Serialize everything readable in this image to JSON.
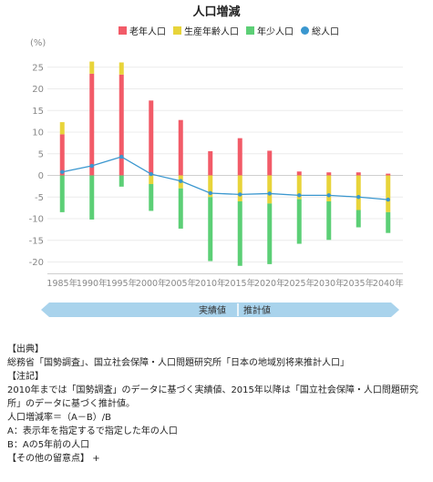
{
  "title": "人口増減",
  "legend": [
    {
      "label": "老年人口",
      "color": "#f25b68",
      "shape": "square"
    },
    {
      "label": "生産年齢人口",
      "color": "#e8d43a",
      "shape": "square"
    },
    {
      "label": "年少人口",
      "color": "#5ccf76",
      "shape": "square"
    },
    {
      "label": "総人口",
      "color": "#3a97cf",
      "shape": "circle"
    }
  ],
  "chart_data": {
    "type": "bar",
    "stacked": true,
    "ylabel": "(%)",
    "ylim": [
      -25,
      30
    ],
    "yticks": [
      -20,
      -15,
      -10,
      -5,
      0,
      5,
      10,
      15,
      20,
      25
    ],
    "categories": [
      "1985年",
      "1990年",
      "1995年",
      "2000年",
      "2005年",
      "2010年",
      "2015年",
      "2020年",
      "2025年",
      "2030年",
      "2035年",
      "2040年"
    ],
    "series": [
      {
        "name": "老年人口",
        "color": "#f25b68",
        "values": [
          9.5,
          23.5,
          23.3,
          17.3,
          12.8,
          5.6,
          8.6,
          5.7,
          0.9,
          0.7,
          0.7,
          0.4
        ]
      },
      {
        "name": "生産年齢人口",
        "color": "#e8d43a",
        "values": [
          2.8,
          2.8,
          2.8,
          -2.0,
          -3.0,
          -5.0,
          -6.0,
          -6.5,
          -5.5,
          -6.0,
          -8.0,
          -8.5
        ]
      },
      {
        "name": "年少人口",
        "color": "#5ccf76",
        "values": [
          -8.5,
          -10.2,
          -2.6,
          -6.2,
          -9.3,
          -14.8,
          -14.9,
          -14.0,
          -10.3,
          -8.9,
          -4.0,
          -4.8
        ]
      }
    ],
    "line": {
      "name": "総人口",
      "color": "#3a97cf",
      "values": [
        0.8,
        2.2,
        4.3,
        0.3,
        -1.3,
        -4.1,
        -4.4,
        -4.2,
        -4.6,
        -4.6,
        -5.0,
        -5.6
      ]
    },
    "grid": true,
    "legend_position": "top"
  },
  "period_bar": {
    "left_label": "実績値",
    "right_label": "推計値"
  },
  "notes": {
    "source_heading": "【出典】",
    "source_text": "総務省「国勢調査」、国立社会保障・人口問題研究所「日本の地域別将来推計人口」",
    "notes_heading": "【注記】",
    "notes_text": "2010年までは「国勢調査」のデータに基づく実績値、2015年以降は「国立社会保障・人口問題研究所」のデータに基づく推計値。",
    "formula": "人口増減率＝（A－B）/B",
    "def_a": "A：表示年を指定するで指定した年の人口",
    "def_b": "B：Aの5年前の人口",
    "other_heading": "【その他の留意点】",
    "other_toggle": "+"
  }
}
